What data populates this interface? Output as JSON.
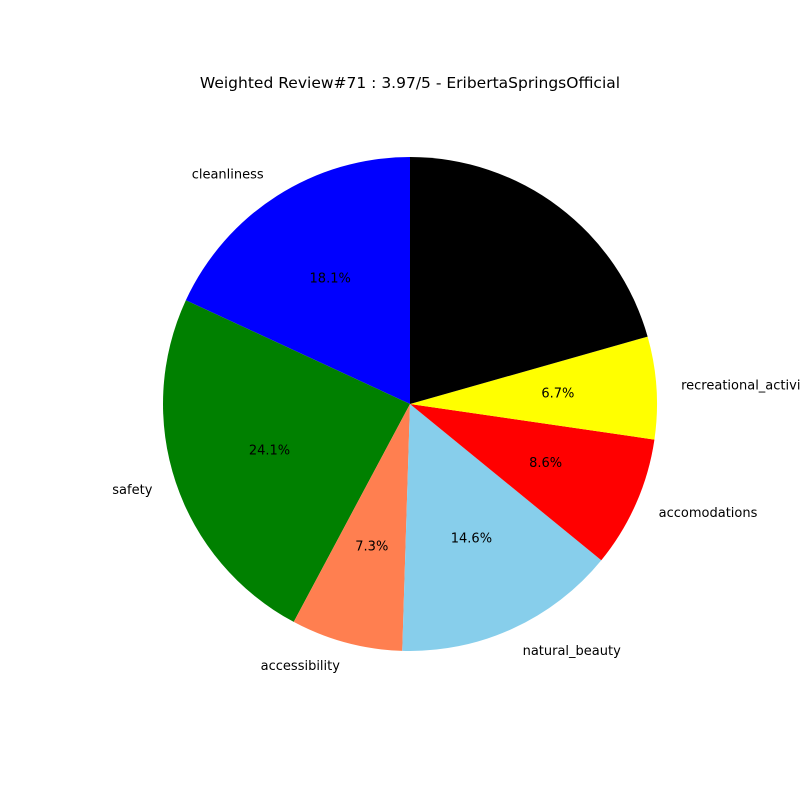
{
  "chart_data": {
    "type": "pie",
    "title": "Weighted Review#71 : 3.97/5 - EribertaSpringsOfficial",
    "start_angle_deg": 90,
    "direction": "counterclockwise",
    "slices": [
      {
        "label": "cleanliness",
        "value": 18.1,
        "pct_label": "18.1%",
        "color": "#0000ff"
      },
      {
        "label": "safety",
        "value": 24.1,
        "pct_label": "24.1%",
        "color": "#008000"
      },
      {
        "label": "accessibility",
        "value": 7.3,
        "pct_label": "7.3%",
        "color": "#ff7f50"
      },
      {
        "label": "natural_beauty",
        "value": 14.6,
        "pct_label": "14.6%",
        "color": "#87ceeb"
      },
      {
        "label": "accomodations",
        "value": 8.6,
        "pct_label": "8.6%",
        "color": "#ff0000"
      },
      {
        "label": "recreational_activities",
        "value": 6.7,
        "pct_label": "6.7%",
        "color": "#ffff00"
      },
      {
        "label": "",
        "value": 20.6,
        "pct_label": "",
        "color": "#000000"
      }
    ]
  }
}
